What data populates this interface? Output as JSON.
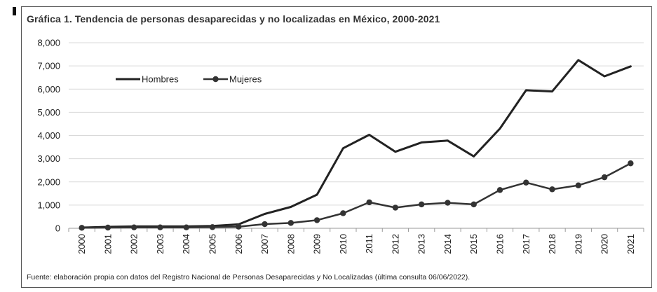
{
  "header": {
    "title": "Gráfica 1. Tendencia de personas desaparecidas y no localizadas en México, 2000-2021"
  },
  "footer": {
    "source": "Fuente: elaboración propia con datos del Registro Nacional de Personas Desaparecidas y No Localizadas (última consulta 06/06/2022)."
  },
  "chart_data": {
    "type": "line",
    "title": "Gráfica 1. Tendencia de personas desaparecidas y no localizadas en México, 2000-2021",
    "xlabel": "",
    "ylabel": "",
    "x": [
      "2000",
      "2001",
      "2002",
      "2003",
      "2004",
      "2005",
      "2006",
      "2007",
      "2008",
      "2009",
      "2010",
      "2011",
      "2012",
      "2013",
      "2014",
      "2015",
      "2016",
      "2017",
      "2018",
      "2019",
      "2020",
      "2021"
    ],
    "ylim": [
      0,
      8000
    ],
    "yticks": [
      0,
      1000,
      2000,
      3000,
      4000,
      5000,
      6000,
      7000,
      8000
    ],
    "ytick_labels": [
      "0",
      "1,000",
      "2,000",
      "3,000",
      "4,000",
      "5,000",
      "6,000",
      "7,000",
      "8,000"
    ],
    "grid": true,
    "legend_position": "top-left",
    "series": [
      {
        "name": "Hombres",
        "color": "#222222",
        "marker": "none",
        "values": [
          30,
          60,
          80,
          80,
          80,
          100,
          170,
          620,
          920,
          1450,
          3450,
          4030,
          3300,
          3700,
          3780,
          3100,
          4300,
          5950,
          5900,
          7250,
          6550,
          6980
        ]
      },
      {
        "name": "Mujeres",
        "color": "#333333",
        "marker": "circle",
        "values": [
          20,
          30,
          40,
          40,
          40,
          50,
          70,
          180,
          230,
          350,
          650,
          1120,
          890,
          1030,
          1100,
          1030,
          1650,
          1970,
          1680,
          1850,
          2200,
          2800
        ]
      }
    ]
  }
}
